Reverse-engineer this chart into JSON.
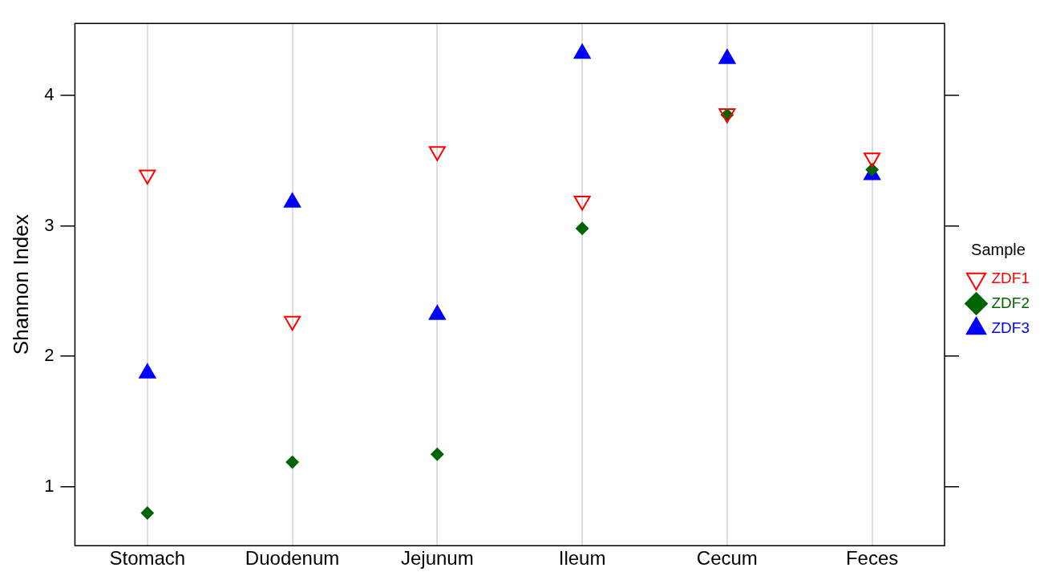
{
  "chart_data": {
    "type": "scatter",
    "ylabel": "Shannon Index",
    "legend_title": "Sample",
    "legend": "right",
    "grid": "x",
    "categories": [
      "Stomach",
      "Duodenum",
      "Jejunum",
      "Ileum",
      "Cecum",
      "Feces"
    ],
    "ylim": [
      0.55,
      4.55
    ],
    "yticks": [
      1,
      2,
      3,
      4
    ],
    "series": [
      {
        "name": "ZDF1",
        "color": "#ff0000",
        "marker": "triangle-down",
        "values": [
          3.39,
          2.27,
          3.57,
          3.19,
          3.86,
          3.52
        ]
      },
      {
        "name": "ZDF2",
        "color": "#006400",
        "marker": "diamond",
        "values": [
          0.8,
          1.19,
          1.25,
          2.98,
          3.85,
          3.43
        ]
      },
      {
        "name": "ZDF3",
        "color": "#0000ff",
        "marker": "triangle",
        "values": [
          1.87,
          3.18,
          2.32,
          4.32,
          4.28,
          3.39
        ]
      }
    ]
  }
}
